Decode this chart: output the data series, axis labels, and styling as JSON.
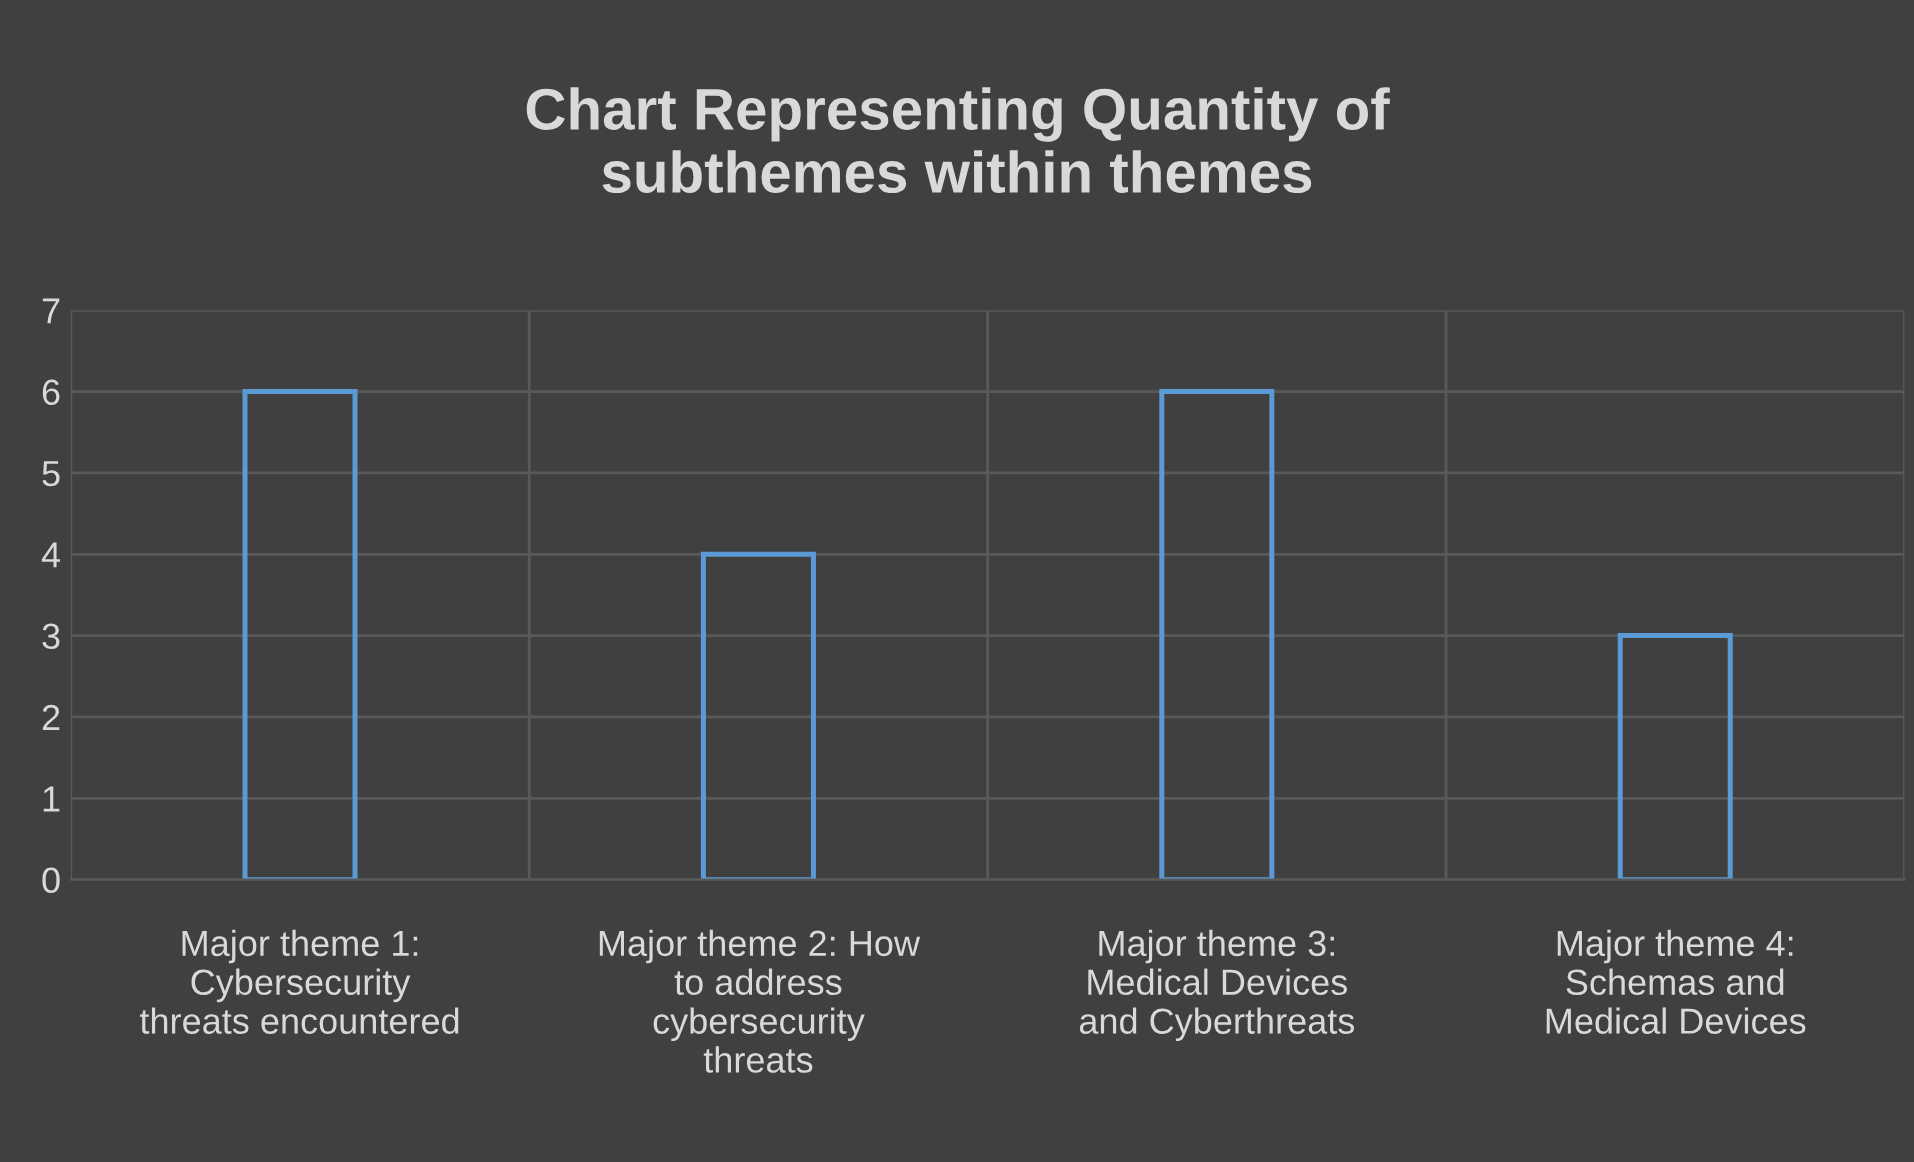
{
  "chart_data": {
    "type": "bar",
    "title": "Chart Representing Quantity of\nsubthemes within themes",
    "categories": [
      "Major theme 1:\nCybersecurity\nthreats encountered",
      "Major theme 2: How\nto address\ncybersecurity\nthreats",
      "Major theme 3:\nMedical Devices\nand Cyberthreats",
      "Major theme 4:\nSchemas and\nMedical Devices"
    ],
    "values": [
      6,
      4,
      6,
      3
    ],
    "color": "#5b9bd5",
    "ylim": [
      0,
      7
    ],
    "yticks": [
      0,
      1,
      2,
      3,
      4,
      5,
      6,
      7
    ],
    "grid": true
  }
}
